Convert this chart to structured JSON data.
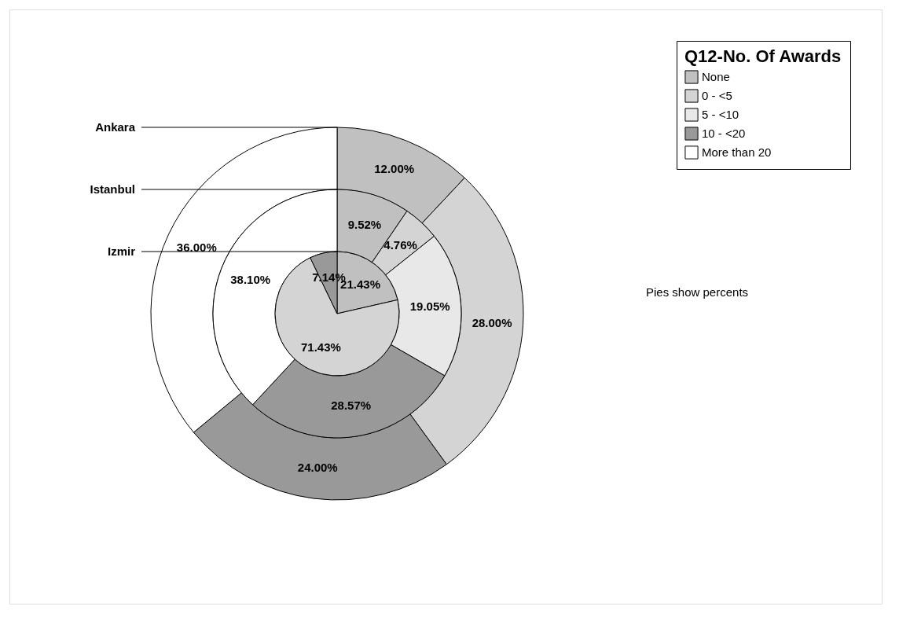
{
  "chart_data": {
    "type": "donut",
    "legend_title": "Q12-No. Of Awards",
    "legend": "top right",
    "categories": [
      "None",
      "0 - <5",
      "5 - <10",
      "10 - <20",
      "More than 20"
    ],
    "colors": [
      "#c0c0c0",
      "#d4d4d4",
      "#e8e8e8",
      "#999999",
      "#ffffff"
    ],
    "series": [
      {
        "name": "Ankara",
        "values": [
          12.0,
          28.0,
          0,
          24.0,
          36.0
        ],
        "value_labels": [
          "12.00%",
          "28.00%",
          null,
          "24.00%",
          "36.00%"
        ]
      },
      {
        "name": "Istanbul",
        "values": [
          9.52,
          4.76,
          19.05,
          28.57,
          38.1
        ],
        "value_labels": [
          "9.52%",
          "4.76%",
          "19.05%",
          "28.57%",
          "38.10%"
        ]
      },
      {
        "name": "Izmir",
        "values": [
          21.43,
          71.43,
          0,
          7.14,
          0
        ],
        "value_labels": [
          "21.43%",
          "71.43%",
          null,
          "7.14%",
          null
        ]
      }
    ],
    "annotations": [
      "Pies show percents"
    ]
  }
}
